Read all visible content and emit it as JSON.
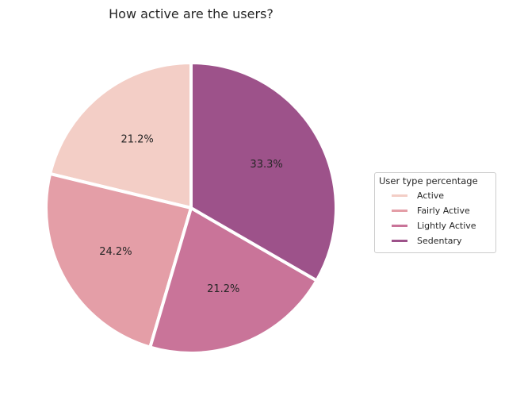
{
  "chart_data": {
    "type": "pie",
    "title": "How active are the users?",
    "categories": [
      "Active",
      "Fairly Active",
      "Lightly Active",
      "Sedentary"
    ],
    "values": [
      21.2,
      24.2,
      21.2,
      33.3
    ],
    "labels": [
      "21.2%",
      "24.2%",
      "21.2%",
      "33.3%"
    ],
    "colors": [
      "#f3cec6",
      "#e49ea7",
      "#c97499",
      "#9d528a"
    ],
    "legend": {
      "title": "User type percentage",
      "placement": "right",
      "entries": [
        "Active",
        "Fairly Active",
        "Lightly Active",
        "Sedentary"
      ]
    },
    "start_angle": 90,
    "direction": "counterclockwise"
  }
}
